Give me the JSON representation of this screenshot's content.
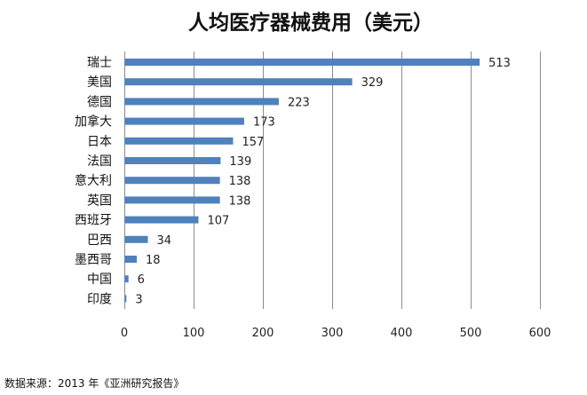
{
  "chart_data": {
    "type": "bar",
    "orientation": "horizontal",
    "title": "人均医疗器械费用（美元）",
    "categories": [
      "瑞士",
      "美国",
      "德国",
      "加拿大",
      "日本",
      "法国",
      "意大利",
      "英国",
      "西班牙",
      "巴西",
      "墨西哥",
      "中国",
      "印度"
    ],
    "values": [
      513,
      329,
      223,
      173,
      157,
      139,
      138,
      138,
      107,
      34,
      18,
      6,
      3
    ],
    "xticks": [
      0,
      100,
      200,
      300,
      400,
      500,
      600
    ],
    "xlim": [
      0,
      600
    ],
    "bar_color": "#4f81bd",
    "grid": true,
    "legend": "none"
  },
  "source_note": "数据来源：2013 年《亚洲研究报告》"
}
